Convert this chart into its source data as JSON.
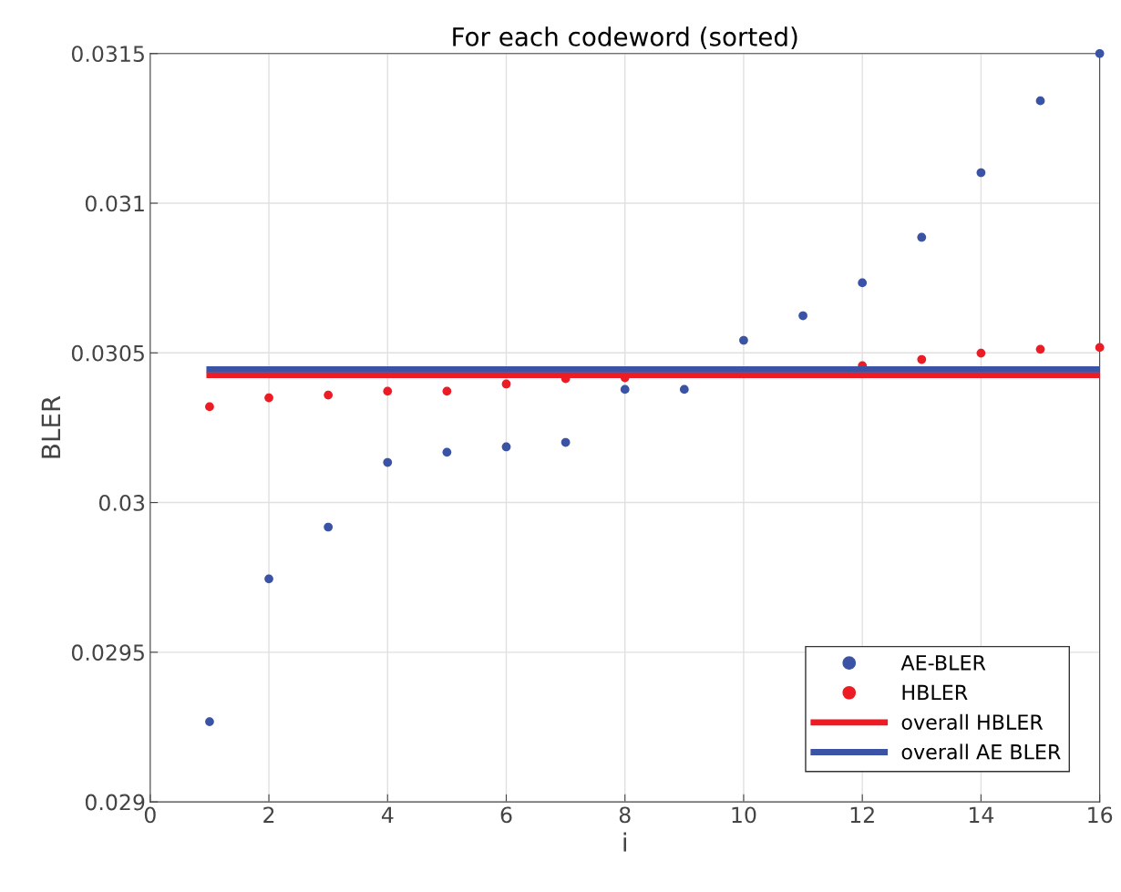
{
  "chart_data": {
    "type": "scatter",
    "title": "For each codeword (sorted)",
    "xlabel": "i",
    "ylabel": "BLER",
    "series": [
      {
        "name": "AE-BLER",
        "marker": "circle",
        "color": "#3a53a4",
        "x": [
          1,
          2,
          3,
          4,
          5,
          6,
          7,
          8,
          9,
          10,
          11,
          12,
          13,
          14,
          15,
          16
        ],
        "values": [
          0.029268,
          0.029745,
          0.029918,
          0.030134,
          0.030168,
          0.030186,
          0.030201,
          0.030378,
          0.030378,
          0.030542,
          0.030624,
          0.030734,
          0.030886,
          0.031102,
          0.031342,
          0.0315
        ]
      },
      {
        "name": "HBLER",
        "marker": "circle",
        "color": "#ed1c24",
        "x": [
          1,
          2,
          3,
          4,
          5,
          6,
          7,
          8,
          9,
          10,
          11,
          12,
          13,
          14,
          15,
          16
        ],
        "values": [
          0.03032,
          0.03035,
          0.030359,
          0.030372,
          0.030372,
          0.030396,
          0.030414,
          0.030417,
          null,
          null,
          null,
          0.030457,
          0.030478,
          0.030499,
          0.030512,
          0.030518
        ]
      },
      {
        "name": "overall HBLER",
        "type": "line",
        "marker": "none",
        "color": "#ed1c24",
        "x": [
          1,
          16
        ],
        "values": [
          0.030426,
          0.030426
        ]
      },
      {
        "name": "overall AE BLER",
        "type": "line",
        "marker": "none",
        "color": "#3a53a4",
        "x": [
          1,
          16
        ],
        "values": [
          0.030445,
          0.030445
        ]
      }
    ],
    "xlim": [
      0,
      16
    ],
    "xticks": [
      0,
      2,
      4,
      6,
      8,
      10,
      12,
      14,
      16
    ],
    "ylim": [
      0.029,
      0.0315
    ],
    "yticks": [
      0.029,
      0.0295,
      0.03,
      0.0305,
      0.031,
      0.0315
    ],
    "grid": true,
    "legend": "bottom right",
    "line_style": "solid"
  }
}
